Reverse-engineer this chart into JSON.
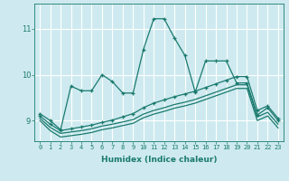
{
  "xlabel": "Humidex (Indice chaleur)",
  "background_color": "#ceeaf0",
  "grid_color": "#ffffff",
  "line_color": "#1a7a6e",
  "x_ticks": [
    0,
    1,
    2,
    3,
    4,
    5,
    6,
    7,
    8,
    9,
    10,
    11,
    12,
    13,
    14,
    15,
    16,
    17,
    18,
    19,
    20,
    21,
    22,
    23
  ],
  "y_ticks": [
    9,
    10,
    11
  ],
  "ylim": [
    8.55,
    11.55
  ],
  "xlim": [
    -0.5,
    23.5
  ],
  "series": [
    {
      "x": [
        0,
        1,
        2,
        3,
        4,
        5,
        6,
        7,
        8,
        9,
        10,
        11,
        12,
        13,
        14,
        15,
        16,
        17,
        18,
        19,
        20,
        21,
        22,
        23
      ],
      "y": [
        9.15,
        9.0,
        8.8,
        9.75,
        9.65,
        9.65,
        10.0,
        9.85,
        9.6,
        9.6,
        10.55,
        11.22,
        11.22,
        10.8,
        10.42,
        9.62,
        10.3,
        10.3,
        10.3,
        9.82,
        9.82,
        9.12,
        9.28,
        9.0
      ],
      "marker": "+"
    },
    {
      "x": [
        0,
        1,
        2,
        3,
        4,
        5,
        6,
        7,
        8,
        9,
        10,
        11,
        12,
        13,
        14,
        15,
        16,
        17,
        18,
        19,
        20,
        21,
        22,
        23
      ],
      "y": [
        9.1,
        8.92,
        8.78,
        8.82,
        8.86,
        8.9,
        8.96,
        9.01,
        9.08,
        9.15,
        9.28,
        9.38,
        9.45,
        9.52,
        9.58,
        9.64,
        9.72,
        9.8,
        9.88,
        9.96,
        9.96,
        9.22,
        9.32,
        9.05
      ],
      "marker": "+"
    },
    {
      "x": [
        0,
        1,
        2,
        3,
        4,
        5,
        6,
        7,
        8,
        9,
        10,
        11,
        12,
        13,
        14,
        15,
        16,
        17,
        18,
        19,
        20,
        21,
        22,
        23
      ],
      "y": [
        9.05,
        8.85,
        8.72,
        8.75,
        8.78,
        8.82,
        8.88,
        8.92,
        8.97,
        9.02,
        9.14,
        9.22,
        9.28,
        9.35,
        9.4,
        9.46,
        9.54,
        9.62,
        9.7,
        9.78,
        9.78,
        9.08,
        9.18,
        8.92
      ],
      "marker": null
    },
    {
      "x": [
        0,
        1,
        2,
        3,
        4,
        5,
        6,
        7,
        8,
        9,
        10,
        11,
        12,
        13,
        14,
        15,
        16,
        17,
        18,
        19,
        20,
        21,
        22,
        23
      ],
      "y": [
        9.0,
        8.78,
        8.64,
        8.67,
        8.7,
        8.74,
        8.8,
        8.84,
        8.89,
        8.94,
        9.06,
        9.14,
        9.2,
        9.27,
        9.32,
        9.38,
        9.46,
        9.54,
        9.62,
        9.7,
        9.7,
        9.0,
        9.1,
        8.84
      ],
      "marker": null
    }
  ]
}
